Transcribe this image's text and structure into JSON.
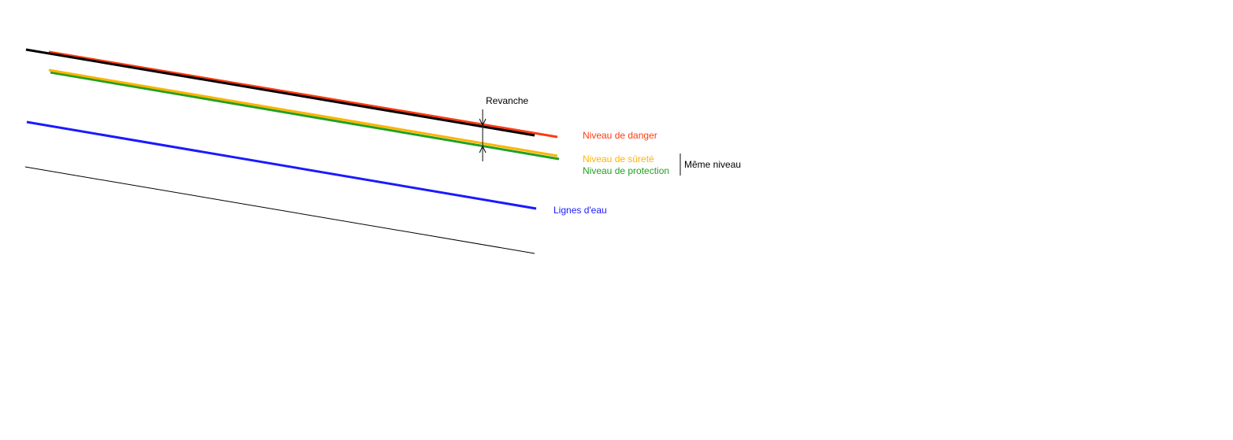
{
  "labels": {
    "revanche": "Revanche",
    "danger": "Niveau de danger",
    "surete": "Niveau de sûreté",
    "protection": "Niveau de protection",
    "meme_niveau": "Même niveau",
    "lignes_eau": "Lignes d'eau"
  },
  "colors": {
    "danger": "#ff3b10",
    "surete": "#ffb400",
    "protection": "#22a022",
    "lignes_eau": "#1a1aff",
    "dike_crest": "#000000",
    "ground": "#000000"
  }
}
